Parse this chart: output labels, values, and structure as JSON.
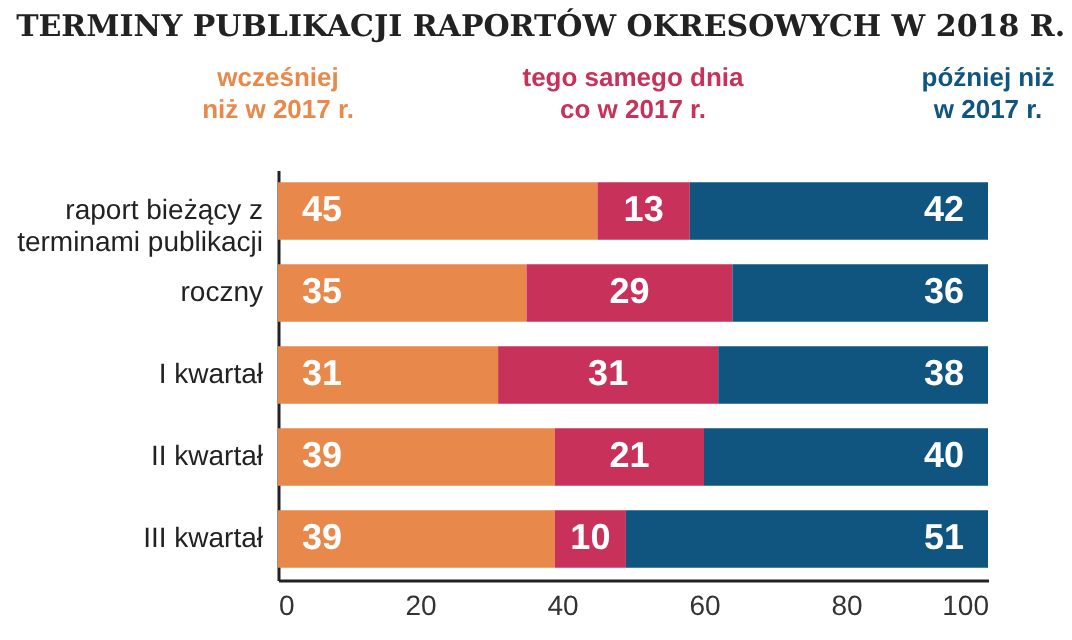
{
  "chart_data": {
    "type": "bar",
    "orientation": "horizontal",
    "stacked": true,
    "title": "TERMINY PUBLIKACJI RAPORTÓW OKRESOWYCH W 2018 R.",
    "categories": [
      "raport bieżący z terminami publikacji",
      "roczny",
      "I kwartał",
      "II kwartał",
      "III kwartał"
    ],
    "series": [
      {
        "name": "wcześniej niż w 2017 r.",
        "color": "#e8884a",
        "values": [
          45,
          35,
          31,
          39,
          39
        ]
      },
      {
        "name": "tego samego dnia co w 2017 r.",
        "color": "#c8325a",
        "values": [
          13,
          29,
          31,
          21,
          10
        ]
      },
      {
        "name": "później niż w 2017 r.",
        "color": "#0f5580",
        "values": [
          42,
          36,
          38,
          40,
          51
        ]
      }
    ],
    "xlim": [
      0,
      100
    ],
    "xticks": [
      0,
      20,
      40,
      60,
      80,
      100
    ],
    "data_labels": true,
    "legend": "top",
    "grid": false
  }
}
